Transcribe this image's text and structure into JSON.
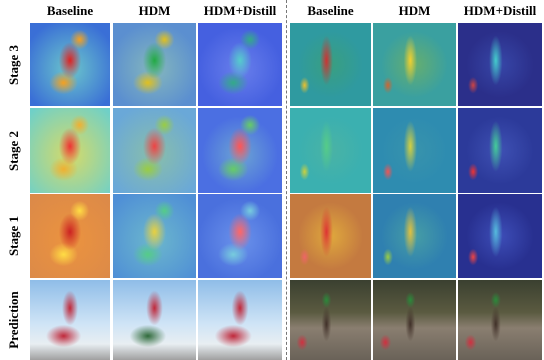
{
  "columns": [
    "Baseline",
    "HDM",
    "HDM+Distill",
    "Baseline",
    "HDM",
    "HDM+Distill"
  ],
  "rows": [
    "Stage 3",
    "Stage 2",
    "Stage 1",
    "Prediction"
  ]
}
